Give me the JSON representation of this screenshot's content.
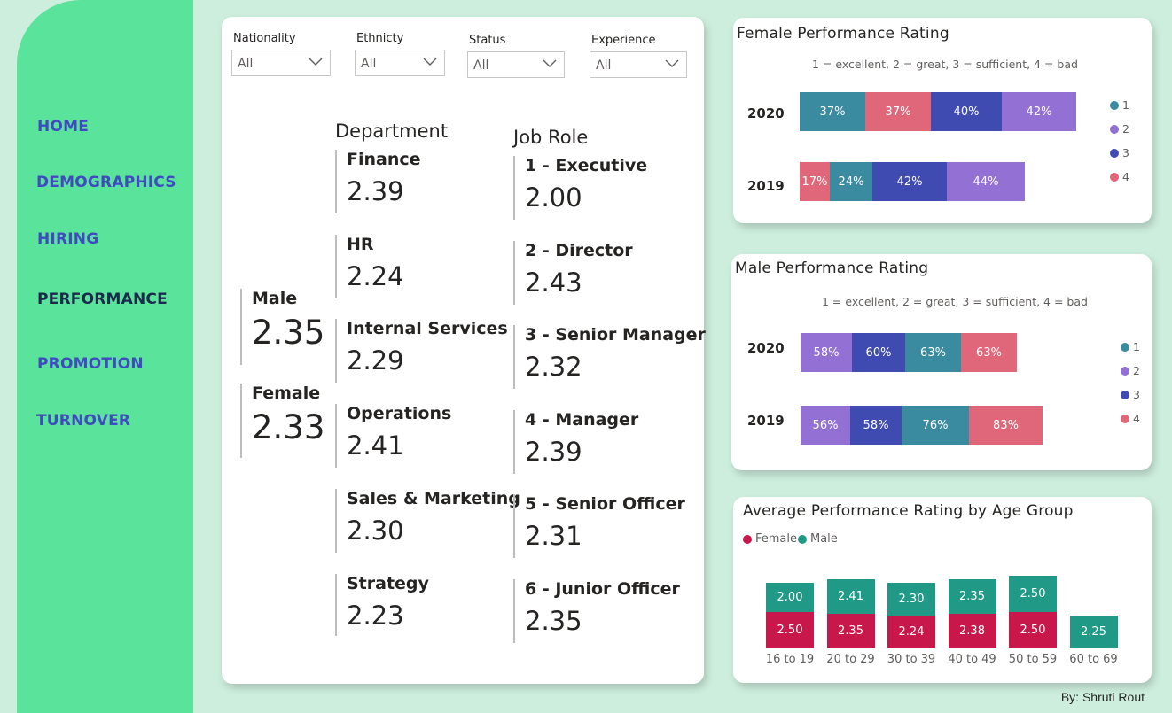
{
  "nav": {
    "items": [
      {
        "label": "HOME",
        "active": false
      },
      {
        "label": "DEMOGRAPHICS",
        "active": false
      },
      {
        "label": "HIRING",
        "active": false
      },
      {
        "label": "PERFORMANCE",
        "active": true
      },
      {
        "label": "PROMOTION",
        "active": false
      },
      {
        "label": "TURNOVER",
        "active": false
      }
    ]
  },
  "filters": [
    {
      "label": "Nationality",
      "value": "All"
    },
    {
      "label": "Ethnicty",
      "value": "All"
    },
    {
      "label": "Status",
      "value": "All"
    },
    {
      "label": "Experience",
      "value": "All"
    }
  ],
  "gender": [
    {
      "label": "Male",
      "value": "2.35"
    },
    {
      "label": "Female",
      "value": "2.33"
    }
  ],
  "department": {
    "title": "Department",
    "items": [
      {
        "label": "Finance",
        "value": "2.39"
      },
      {
        "label": "HR",
        "value": "2.24"
      },
      {
        "label": "Internal Services",
        "value": "2.29"
      },
      {
        "label": "Operations",
        "value": "2.41"
      },
      {
        "label": "Sales & Marketing",
        "value": "2.30"
      },
      {
        "label": "Strategy",
        "value": "2.23"
      }
    ]
  },
  "job_role": {
    "title": "Job Role",
    "items": [
      {
        "label": "1 - Executive",
        "value": "2.00"
      },
      {
        "label": "2 - Director",
        "value": "2.43"
      },
      {
        "label": "3 - Senior Manager",
        "value": "2.32"
      },
      {
        "label": "4 - Manager",
        "value": "2.39"
      },
      {
        "label": "5 - Senior Officer",
        "value": "2.31"
      },
      {
        "label": "6 - Junior Officer",
        "value": "2.35"
      }
    ]
  },
  "colors": {
    "r1": "#3a8aa0",
    "r2": "#9370d4",
    "r3": "#3f4bb0",
    "r4": "#e0677a",
    "female": "#c8174b",
    "male": "#209a86",
    "sidebar": "#5ae39b",
    "nav_text": "#3f4bbf"
  },
  "female_chart": {
    "title": "Female Performance Rating",
    "subtitle": "1 = excellent, 2 = great, 3 = sufficient, 4 = bad",
    "legend": [
      "1",
      "2",
      "3",
      "4"
    ],
    "rows": [
      {
        "year": "2020",
        "segments": [
          {
            "rating": "1",
            "label": "37%",
            "share": 0.185
          },
          {
            "rating": "4",
            "label": "37%",
            "share": 0.185
          },
          {
            "rating": "3",
            "label": "40%",
            "share": 0.2
          },
          {
            "rating": "2",
            "label": "42%",
            "share": 0.21
          }
        ]
      },
      {
        "year": "2019",
        "segments": [
          {
            "rating": "4",
            "label": "17%",
            "share": 0.085
          },
          {
            "rating": "1",
            "label": "24%",
            "share": 0.12
          },
          {
            "rating": "3",
            "label": "42%",
            "share": 0.21
          },
          {
            "rating": "2",
            "label": "44%",
            "share": 0.22
          }
        ]
      }
    ]
  },
  "male_chart": {
    "title": "Male Performance Rating",
    "subtitle": "1 = excellent, 2 = great, 3 = sufficient, 4 = bad",
    "legend": [
      "1",
      "2",
      "3",
      "4"
    ],
    "rows": [
      {
        "year": "2020",
        "segments": [
          {
            "rating": "2",
            "label": "58%",
            "share": 0.145
          },
          {
            "rating": "3",
            "label": "60%",
            "share": 0.15
          },
          {
            "rating": "1",
            "label": "63%",
            "share": 0.1575
          },
          {
            "rating": "4",
            "label": "63%",
            "share": 0.1575
          }
        ]
      },
      {
        "year": "2019",
        "segments": [
          {
            "rating": "2",
            "label": "56%",
            "share": 0.14
          },
          {
            "rating": "3",
            "label": "58%",
            "share": 0.145
          },
          {
            "rating": "1",
            "label": "76%",
            "share": 0.19
          },
          {
            "rating": "4",
            "label": "83%",
            "share": 0.2075
          }
        ]
      }
    ]
  },
  "chart_data": {
    "type": "bar",
    "stacked": true,
    "title": "Average Performance Rating by Age Group",
    "categories": [
      "16 to 19",
      "20 to 29",
      "30 to 39",
      "40 to 49",
      "50 to 59",
      "60 to 69"
    ],
    "series": [
      {
        "name": "Female",
        "values": [
          2.5,
          2.35,
          2.24,
          2.38,
          2.5,
          null
        ]
      },
      {
        "name": "Male",
        "values": [
          2.0,
          2.41,
          2.3,
          2.35,
          2.5,
          2.25
        ]
      }
    ],
    "legend_position": "top-left",
    "grid": false
  },
  "credit": "By: Shruti Rout"
}
